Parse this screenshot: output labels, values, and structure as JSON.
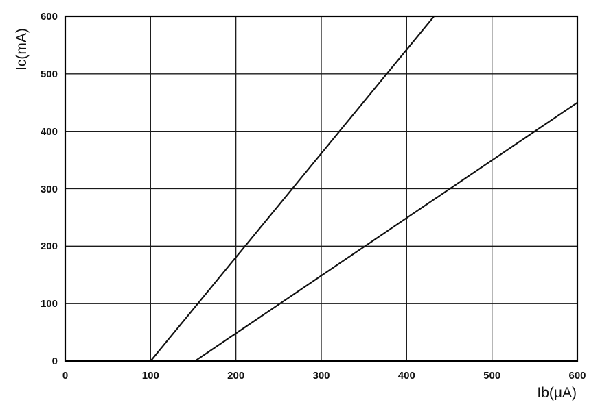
{
  "chart_data": {
    "type": "line",
    "title": "",
    "xlabel": "Ib(μA)",
    "ylabel": "Ic(mA)",
    "xlim": [
      0,
      600
    ],
    "ylim": [
      0,
      600
    ],
    "x_ticks": [
      "0",
      "100",
      "200",
      "300",
      "400",
      "500",
      "600"
    ],
    "y_ticks": [
      "0",
      "100",
      "200",
      "300",
      "400",
      "500",
      "600"
    ],
    "grid": true,
    "legend": "none",
    "series": [
      {
        "x": [
          100,
          432
        ],
        "values": [
          0,
          600
        ]
      },
      {
        "x": [
          152,
          600
        ],
        "values": [
          0,
          450
        ]
      }
    ]
  }
}
